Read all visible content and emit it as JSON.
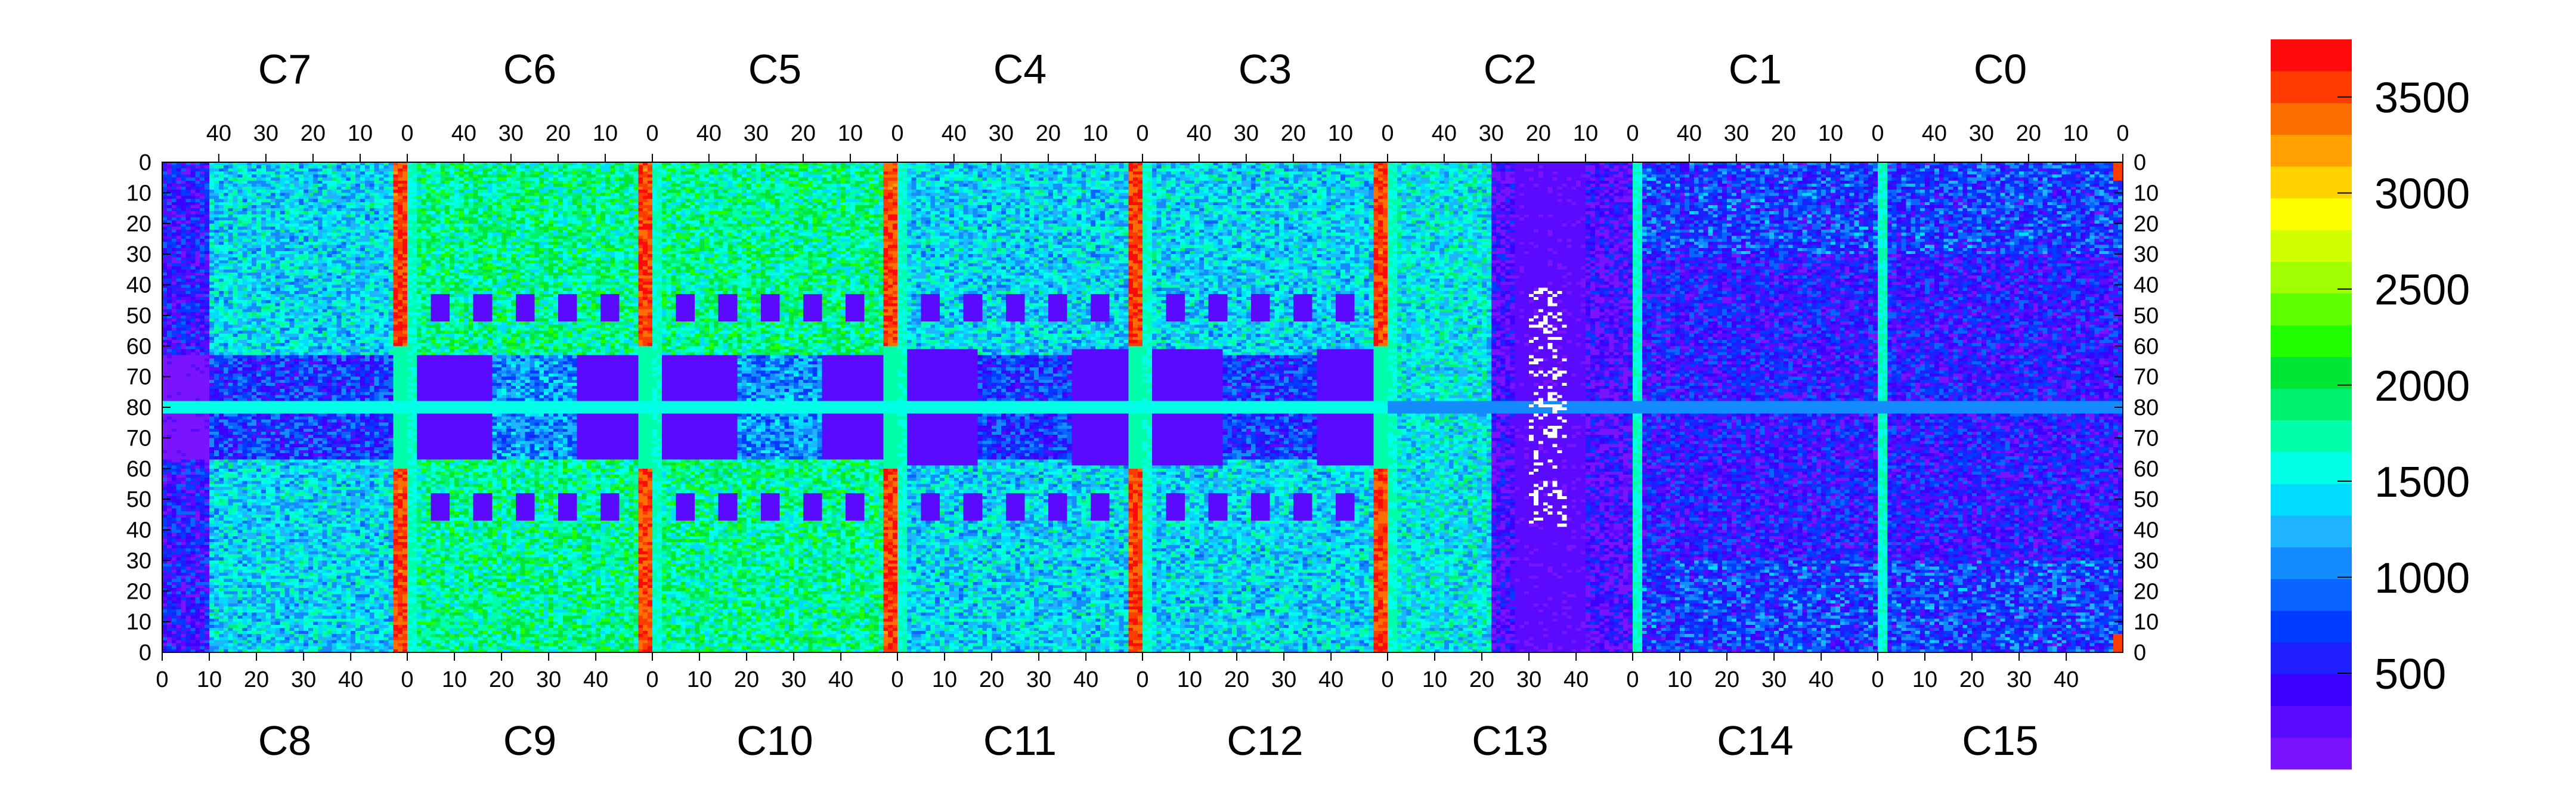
{
  "chart_data": {
    "type": "heatmap",
    "title": "",
    "xlabel": "",
    "ylabel": "",
    "grid": false,
    "top_chip_labels": [
      "C7",
      "C6",
      "C5",
      "C4",
      "C3",
      "C2",
      "C1",
      "C0"
    ],
    "bottom_chip_labels": [
      "C8",
      "C9",
      "C10",
      "C11",
      "C12",
      "C13",
      "C14",
      "C15"
    ],
    "top_column_ticks": [
      "40",
      "30",
      "20",
      "10",
      "0"
    ],
    "bottom_column_ticks": [
      "0",
      "10",
      "20",
      "30",
      "40"
    ],
    "top_row_ticks": [
      "0",
      "10",
      "20",
      "30",
      "40",
      "50",
      "60",
      "70",
      "80"
    ],
    "bottom_row_ticks": [
      "70",
      "60",
      "50",
      "40",
      "30",
      "20",
      "10",
      "0"
    ],
    "columns_per_chip": 52,
    "rows_per_half": 80,
    "zlim": [
      0,
      3800
    ],
    "colorbar": {
      "ticks": [
        "500",
        "1000",
        "1500",
        "2000",
        "2500",
        "3000",
        "3500"
      ],
      "tick_values": [
        500,
        1000,
        1500,
        2000,
        2500,
        3000,
        3500
      ],
      "colors": [
        "#7a14ff",
        "#5a0aff",
        "#3c00ff",
        "#1e1eff",
        "#003cff",
        "#0a64ff",
        "#148cff",
        "#1eb4ff",
        "#00dcff",
        "#00ffe6",
        "#00ffaa",
        "#00f070",
        "#00e636",
        "#20ff00",
        "#60ff00",
        "#a0ff00",
        "#d0ff00",
        "#ffff00",
        "#ffd200",
        "#ffa000",
        "#ff6e00",
        "#ff3c00",
        "#ff0a0a"
      ]
    },
    "region_estimates": [
      {
        "chips": "C7,C6,C5,C4,C3,C2,C1,C0",
        "area": "row 80 boundary",
        "approx_value": 1600
      },
      {
        "chips": "C7,C8",
        "area": "outer columns",
        "approx_value": 600
      },
      {
        "chips": "C6,C5,C10,C9",
        "area": "central bulk",
        "approx_value": 1900
      },
      {
        "chips": "C4,C3,C11,C12",
        "area": "central bulk",
        "approx_value": 1500
      },
      {
        "chips": "C13,C2",
        "area": "mostly low",
        "approx_value": 400
      },
      {
        "chips": "C1,C0,C14,C15",
        "area": "mostly low",
        "approx_value": 500
      },
      {
        "chips": "C7,C6,C5,C4,C3,C2",
        "area": "column 0 edge stripes",
        "approx_value": 3600
      }
    ]
  }
}
